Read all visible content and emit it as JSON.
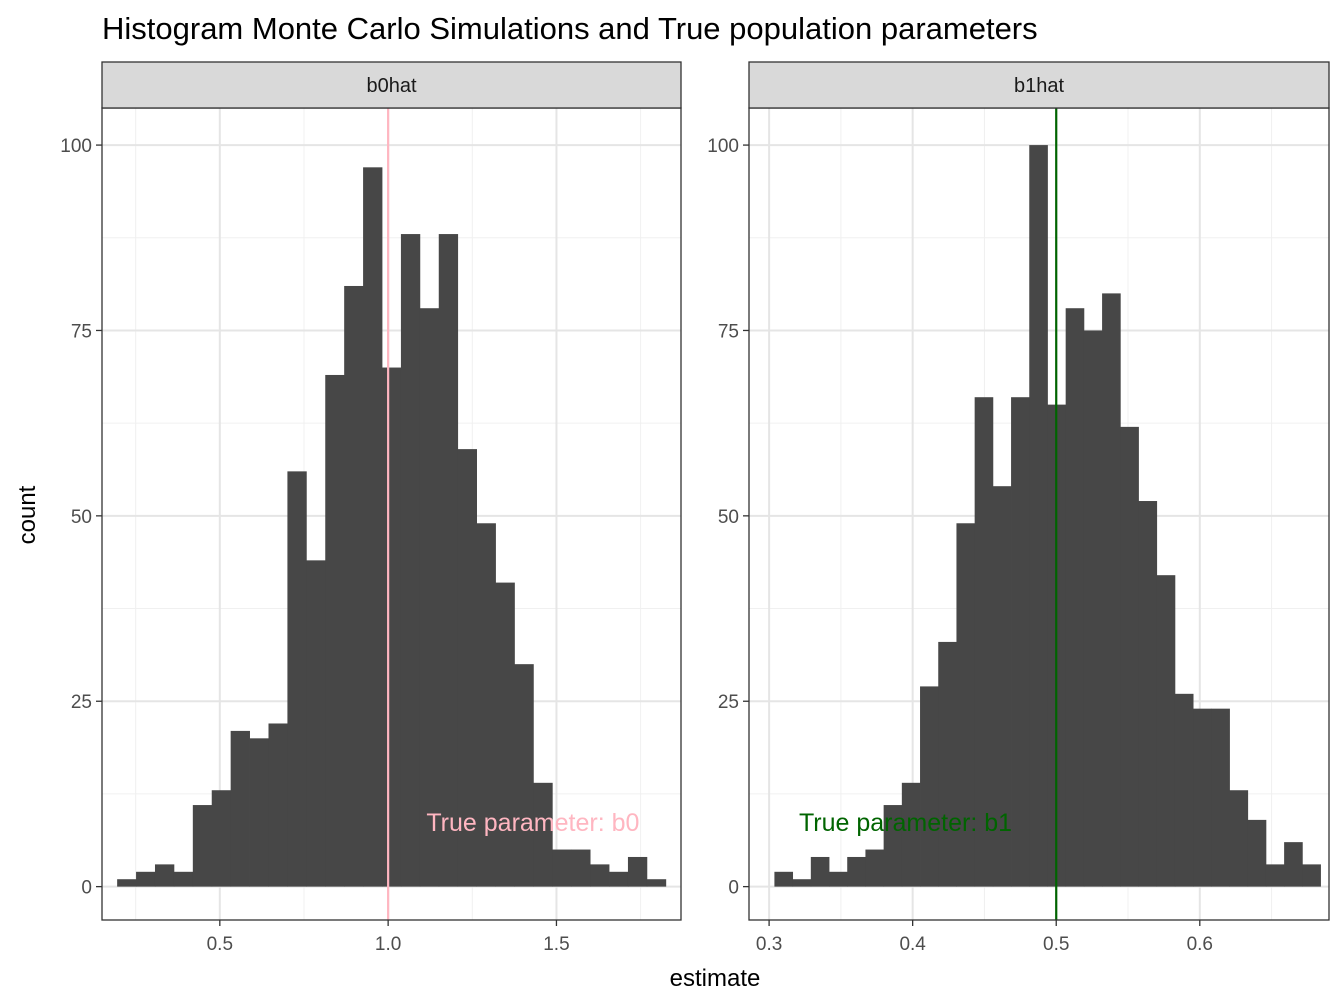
{
  "chart_data": {
    "type": "bar",
    "title": "Histogram Monte Carlo Simulations and True population parameters",
    "xlabel": "estimate",
    "ylabel": "count",
    "grid": true,
    "panels": [
      {
        "strip": "b0hat",
        "xlim": [
          0.15,
          1.87
        ],
        "ylim": [
          -4.5,
          105
        ],
        "x_ticks": [
          {
            "value": 0.5,
            "label": "0.5"
          },
          {
            "value": 1.0,
            "label": "1.0"
          },
          {
            "value": 1.5,
            "label": "1.5"
          }
        ],
        "y_ticks": [
          {
            "value": 0,
            "label": "0"
          },
          {
            "value": 25,
            "label": "25"
          },
          {
            "value": 50,
            "label": "50"
          },
          {
            "value": 75,
            "label": "75"
          },
          {
            "value": 100,
            "label": "100"
          }
        ],
        "bin_start": 0.195,
        "bin_width": 0.0562,
        "counts": [
          1,
          2,
          3,
          2,
          11,
          13,
          21,
          20,
          22,
          56,
          44,
          69,
          81,
          97,
          70,
          88,
          78,
          88,
          59,
          49,
          41,
          30,
          14,
          5,
          5,
          3,
          2,
          4,
          1
        ],
        "true_value": 1.0,
        "true_color": "#ffb6c1",
        "annotation": {
          "text": "True parameter:  b0",
          "x": 1.43,
          "y": 7.5
        }
      },
      {
        "strip": "b1hat",
        "xlim": [
          0.286,
          0.69
        ],
        "ylim": [
          -4.5,
          105
        ],
        "x_ticks": [
          {
            "value": 0.3,
            "label": "0.3"
          },
          {
            "value": 0.4,
            "label": "0.4"
          },
          {
            "value": 0.5,
            "label": "0.5"
          },
          {
            "value": 0.6,
            "label": "0.6"
          }
        ],
        "y_ticks": [
          {
            "value": 0,
            "label": "0"
          },
          {
            "value": 25,
            "label": "25"
          },
          {
            "value": 50,
            "label": "50"
          },
          {
            "value": 75,
            "label": "75"
          },
          {
            "value": 100,
            "label": "100"
          }
        ],
        "bin_start": 0.3037,
        "bin_width": 0.01268,
        "counts": [
          2,
          1,
          4,
          2,
          4,
          5,
          11,
          14,
          27,
          33,
          49,
          66,
          54,
          66,
          100,
          65,
          78,
          75,
          80,
          62,
          52,
          42,
          26,
          24,
          24,
          13,
          9,
          3,
          6,
          3
        ],
        "true_value": 0.5,
        "true_color": "#006400",
        "annotation": {
          "text": "True parameter:  b1",
          "x": 0.395,
          "y": 7.5
        }
      }
    ]
  }
}
